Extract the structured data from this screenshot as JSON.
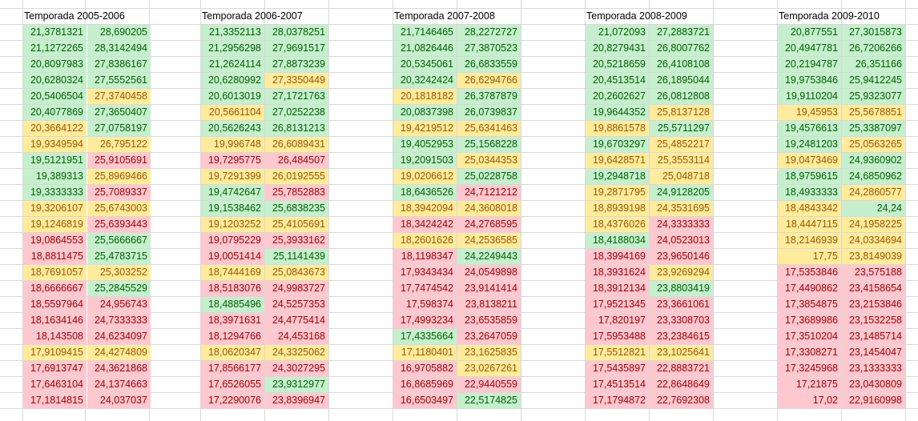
{
  "colors": {
    "green_fill": "#c6efce",
    "green_text": "#006100",
    "yellow_fill": "#ffeb9c",
    "yellow_text": "#9c5700",
    "red_fill": "#ffc7ce",
    "red_text": "#9c0006",
    "grid": "#d9d9d9"
  },
  "seasons": [
    {
      "title": "Temporada 2005-2006",
      "rows": [
        [
          "21,3781321",
          "g",
          "28,690205",
          "g"
        ],
        [
          "21,1272265",
          "g",
          "28,3142494",
          "g"
        ],
        [
          "20,8097983",
          "g",
          "27,8386167",
          "g"
        ],
        [
          "20,6280324",
          "g",
          "27,5552561",
          "g"
        ],
        [
          "20,5406504",
          "g",
          "27,3740458",
          "y"
        ],
        [
          "20,4077869",
          "g",
          "27,3650407",
          "g"
        ],
        [
          "20,3664122",
          "y",
          "27,0758197",
          "g"
        ],
        [
          "19,9349594",
          "y",
          "26,795122",
          "y"
        ],
        [
          "19,5121951",
          "g",
          "25,9105691",
          "r"
        ],
        [
          "19,389313",
          "g",
          "25,8969466",
          "y"
        ],
        [
          "19,3333333",
          "g",
          "25,7089337",
          "r"
        ],
        [
          "19,3206107",
          "y",
          "25,6743003",
          "y"
        ],
        [
          "19,1246819",
          "y",
          "25,6393443",
          "r"
        ],
        [
          "19,0864553",
          "r",
          "25,5666667",
          "g"
        ],
        [
          "18,8811475",
          "r",
          "25,4783715",
          "g"
        ],
        [
          "18,7691057",
          "y",
          "25,303252",
          "y"
        ],
        [
          "18,6666667",
          "r",
          "25,2845529",
          "g"
        ],
        [
          "18,5597964",
          "r",
          "24,956743",
          "r"
        ],
        [
          "18,1634146",
          "r",
          "24,7333333",
          "r"
        ],
        [
          "18,143508",
          "r",
          "24,6234097",
          "r"
        ],
        [
          "17,9109415",
          "y",
          "24,4274809",
          "y"
        ],
        [
          "17,6913747",
          "r",
          "24,3621868",
          "r"
        ],
        [
          "17,6463104",
          "r",
          "24,1374663",
          "r"
        ],
        [
          "17,1814815",
          "r",
          "24,037037",
          "r"
        ]
      ]
    },
    {
      "title": "Temporada 2006-2007",
      "rows": [
        [
          "21,3352113",
          "g",
          "28,0378251",
          "g"
        ],
        [
          "21,2956298",
          "g",
          "27,9691517",
          "g"
        ],
        [
          "21,2624114",
          "g",
          "27,8873239",
          "g"
        ],
        [
          "20,6280992",
          "g",
          "27,3350449",
          "y"
        ],
        [
          "20,6013019",
          "g",
          "27,1721763",
          "g"
        ],
        [
          "20,5661104",
          "y",
          "27,0252238",
          "g"
        ],
        [
          "20,5626243",
          "g",
          "26,8131213",
          "g"
        ],
        [
          "19,996748",
          "y",
          "26,6089431",
          "y"
        ],
        [
          "19,7295775",
          "r",
          "26,484507",
          "r"
        ],
        [
          "19,7291399",
          "y",
          "26,0192555",
          "y"
        ],
        [
          "19,4742647",
          "g",
          "25,7852883",
          "r"
        ],
        [
          "19,1538462",
          "g",
          "25,6838235",
          "g"
        ],
        [
          "19,1203252",
          "y",
          "25,4105691",
          "y"
        ],
        [
          "19,0795229",
          "r",
          "25,3933162",
          "r"
        ],
        [
          "19,0051414",
          "r",
          "25,1141439",
          "g"
        ],
        [
          "18,7444169",
          "y",
          "25,0843673",
          "y"
        ],
        [
          "18,5183076",
          "r",
          "24,9983727",
          "r"
        ],
        [
          "18,4885496",
          "g",
          "24,5257353",
          "r"
        ],
        [
          "18,3971631",
          "r",
          "24,4775414",
          "r"
        ],
        [
          "18,1294766",
          "r",
          "24,453168",
          "r"
        ],
        [
          "18,0620347",
          "y",
          "24,3325062",
          "y"
        ],
        [
          "17,8566177",
          "r",
          "24,3027295",
          "r"
        ],
        [
          "17,6526055",
          "r",
          "23,9312977",
          "g"
        ],
        [
          "17,2290076",
          "r",
          "23,8396947",
          "r"
        ]
      ]
    },
    {
      "title": "Temporada 2007-2008",
      "rows": [
        [
          "21,7146465",
          "g",
          "28,2272727",
          "g"
        ],
        [
          "21,0826446",
          "g",
          "27,3870523",
          "g"
        ],
        [
          "20,5345061",
          "g",
          "26,6833559",
          "g"
        ],
        [
          "20,3242424",
          "g",
          "26,6294766",
          "y"
        ],
        [
          "20,1818182",
          "y",
          "26,3787879",
          "g"
        ],
        [
          "20,0837398",
          "g",
          "26,0739837",
          "g"
        ],
        [
          "19,4219512",
          "y",
          "25,6341463",
          "y"
        ],
        [
          "19,4052953",
          "g",
          "25,1568228",
          "g"
        ],
        [
          "19,2091503",
          "g",
          "25,0344353",
          "y"
        ],
        [
          "19,0206612",
          "y",
          "25,0228758",
          "g"
        ],
        [
          "18,6436526",
          "g",
          "24,7121212",
          "r"
        ],
        [
          "18,3942094",
          "y",
          "24,3608018",
          "y"
        ],
        [
          "18,3424242",
          "r",
          "24,2768595",
          "r"
        ],
        [
          "18,2601626",
          "y",
          "24,2536585",
          "y"
        ],
        [
          "18,1198347",
          "r",
          "24,2249443",
          "g"
        ],
        [
          "17,9343434",
          "r",
          "24,0549898",
          "r"
        ],
        [
          "17,7474542",
          "r",
          "23,9141414",
          "r"
        ],
        [
          "17,598374",
          "r",
          "23,8138211",
          "r"
        ],
        [
          "17,4993234",
          "r",
          "23,6535859",
          "r"
        ],
        [
          "17,4335664",
          "g",
          "23,2647059",
          "r"
        ],
        [
          "17,1180401",
          "y",
          "23,1625835",
          "y"
        ],
        [
          "16,9705882",
          "r",
          "23,0267261",
          "y"
        ],
        [
          "16,8685969",
          "r",
          "22,9440559",
          "r"
        ],
        [
          "16,6503497",
          "r",
          "22,5174825",
          "g"
        ]
      ]
    },
    {
      "title": "Temporada 2008-2009",
      "rows": [
        [
          "21,072093",
          "g",
          "27,2883721",
          "g"
        ],
        [
          "20,8279431",
          "g",
          "26,8007762",
          "g"
        ],
        [
          "20,5218659",
          "g",
          "26,4108108",
          "g"
        ],
        [
          "20,4513514",
          "g",
          "26,1895044",
          "g"
        ],
        [
          "20,2602627",
          "g",
          "26,0812808",
          "g"
        ],
        [
          "19,9644352",
          "g",
          "25,8137128",
          "y"
        ],
        [
          "19,8861578",
          "y",
          "25,5711297",
          "g"
        ],
        [
          "19,6703297",
          "g",
          "25,4852217",
          "y"
        ],
        [
          "19,6428571",
          "y",
          "25,3553114",
          "y"
        ],
        [
          "19,2948718",
          "g",
          "25,048718",
          "y"
        ],
        [
          "19,2871795",
          "y",
          "24,9128205",
          "g"
        ],
        [
          "18,8939198",
          "y",
          "24,3531695",
          "y"
        ],
        [
          "18,4376026",
          "y",
          "24,3333333",
          "r"
        ],
        [
          "18,4188034",
          "g",
          "24,0523013",
          "r"
        ],
        [
          "18,3994169",
          "r",
          "23,9650146",
          "r"
        ],
        [
          "18,3931624",
          "r",
          "23,9269294",
          "y"
        ],
        [
          "18,3912134",
          "r",
          "23,8803419",
          "g"
        ],
        [
          "17,9521345",
          "r",
          "23,3661061",
          "r"
        ],
        [
          "17,820197",
          "r",
          "23,3308703",
          "r"
        ],
        [
          "17,5953488",
          "r",
          "23,2384615",
          "r"
        ],
        [
          "17,5512821",
          "y",
          "23,1025641",
          "y"
        ],
        [
          "17,5435897",
          "r",
          "22,8883721",
          "r"
        ],
        [
          "17,4513514",
          "r",
          "22,8648649",
          "r"
        ],
        [
          "17,1794872",
          "r",
          "22,7692308",
          "r"
        ]
      ]
    },
    {
      "title": "Temporada 2009-2010",
      "rows": [
        [
          "20,877551",
          "g",
          "27,3015873",
          "g"
        ],
        [
          "20,4947781",
          "g",
          "26,7206266",
          "g"
        ],
        [
          "20,2194787",
          "g",
          "26,351166",
          "g"
        ],
        [
          "19,9753846",
          "g",
          "25,9412245",
          "g"
        ],
        [
          "19,9110204",
          "g",
          "25,9323077",
          "g"
        ],
        [
          "19,45953",
          "y",
          "25,5678851",
          "y"
        ],
        [
          "19,4576613",
          "g",
          "25,3387097",
          "g"
        ],
        [
          "19,2481203",
          "g",
          "25,0563265",
          "y"
        ],
        [
          "19,0473469",
          "y",
          "24,9360902",
          "g"
        ],
        [
          "18,9759615",
          "g",
          "24,6850962",
          "g"
        ],
        [
          "18,4933333",
          "g",
          "24,2860577",
          "y"
        ],
        [
          "18,4843342",
          "y",
          "24,24",
          "g"
        ],
        [
          "18,4447115",
          "y",
          "24,1958225",
          "y"
        ],
        [
          "18,2146939",
          "y",
          "24,0334694",
          "y"
        ],
        [
          "17,75",
          "y",
          "23,8149039",
          "y"
        ],
        [
          "17,5353846",
          "r",
          "23,575188",
          "r"
        ],
        [
          "17,4490862",
          "r",
          "23,4158654",
          "r"
        ],
        [
          "17,3854875",
          "r",
          "23,2153846",
          "r"
        ],
        [
          "17,3689986",
          "r",
          "23,1532258",
          "r"
        ],
        [
          "17,3510204",
          "r",
          "23,1485714",
          "r"
        ],
        [
          "17,3308271",
          "r",
          "23,1454047",
          "r"
        ],
        [
          "17,3245968",
          "r",
          "23,1333333",
          "r"
        ],
        [
          "17,21875",
          "r",
          "23,0430809",
          "r"
        ],
        [
          "17,02",
          "r",
          "22,9160998",
          "r"
        ]
      ]
    }
  ]
}
